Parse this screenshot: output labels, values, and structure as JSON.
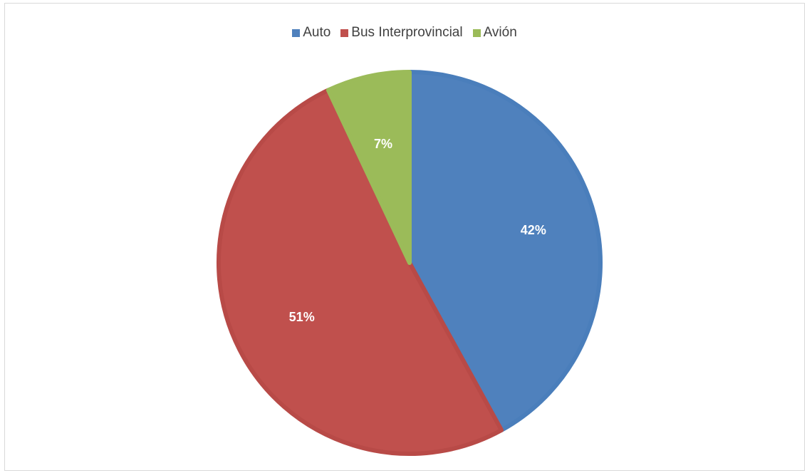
{
  "chart_data": {
    "type": "pie",
    "title": "",
    "legend_position": "top",
    "slices": [
      {
        "name": "Auto",
        "value": 42,
        "label": "42%",
        "color": "#4f81bd",
        "border": "#4a7ebb"
      },
      {
        "name": "Bus Interprovincial",
        "value": 51,
        "label": "51%",
        "color": "#c0504d",
        "border": "#b84a47"
      },
      {
        "name": "Avión",
        "value": 7,
        "label": "7%",
        "color": "#9bbb59",
        "border": "#9bbb59"
      }
    ]
  }
}
